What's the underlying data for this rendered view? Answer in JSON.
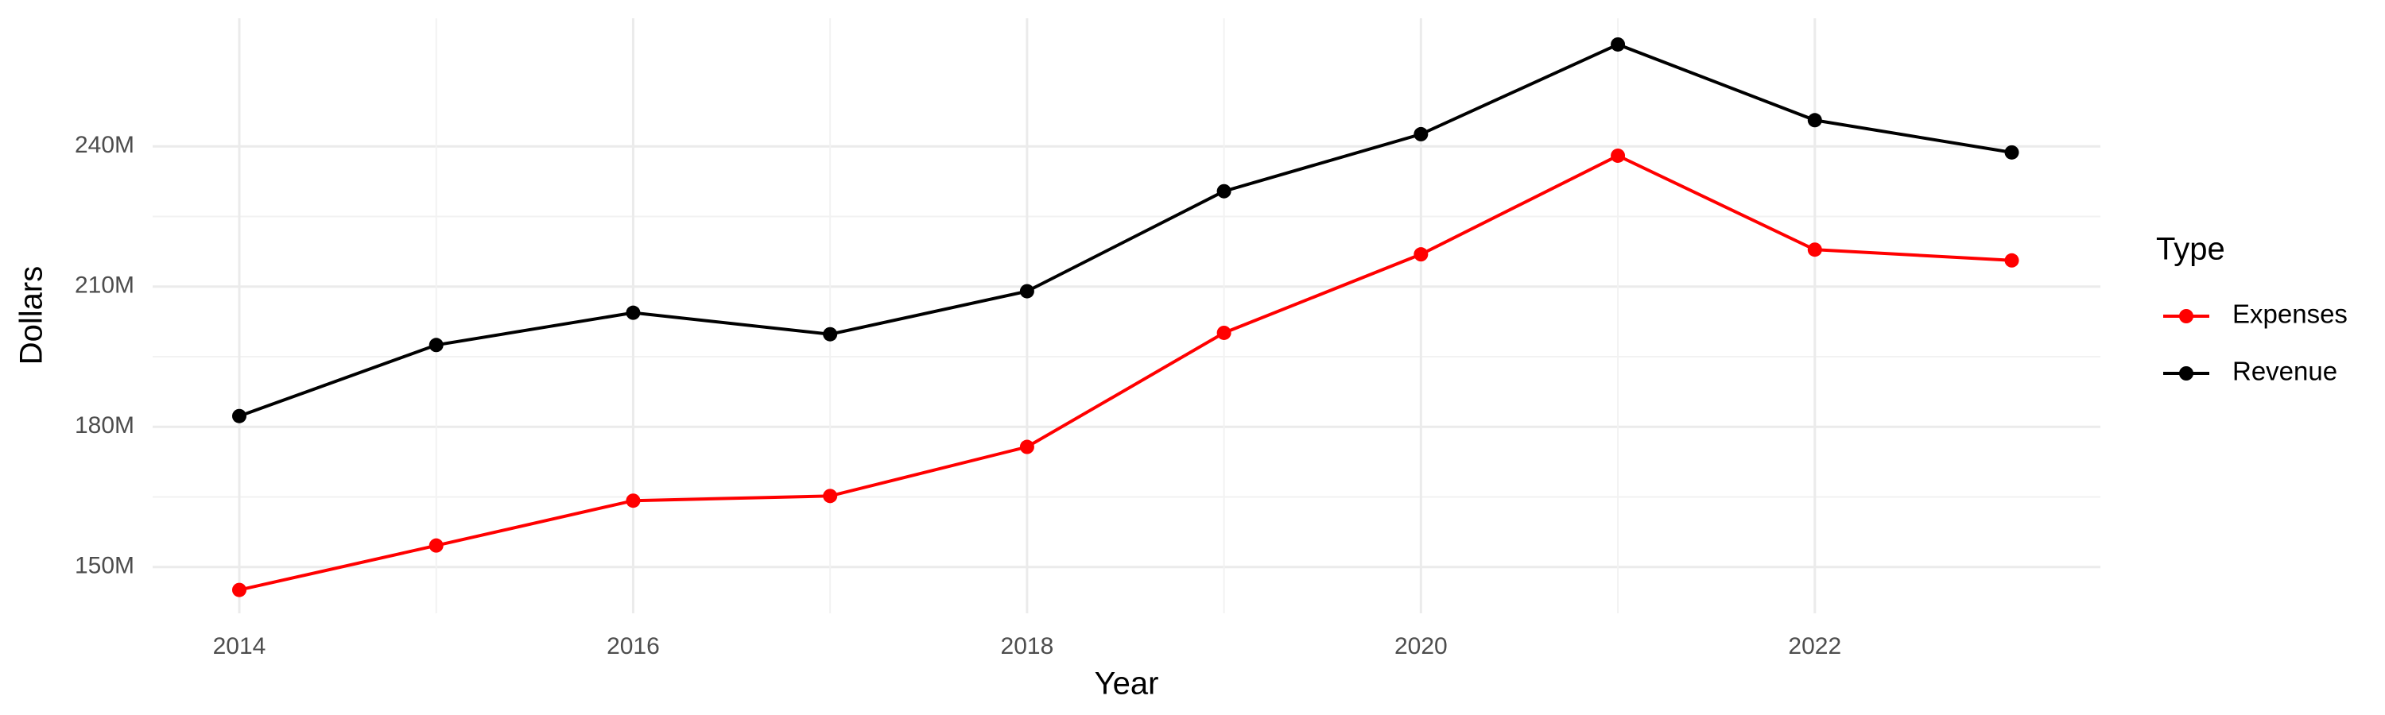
{
  "chart_data": {
    "type": "line",
    "x_label": "Year",
    "y_label": "Dollars",
    "legend_title": "Type",
    "legend": "right",
    "grid": true,
    "x": [
      2014,
      2015,
      2016,
      2017,
      2018,
      2019,
      2020,
      2021,
      2022,
      2023
    ],
    "series": [
      {
        "name": "Expenses",
        "color": "#ff0000",
        "values": [
          145100000,
          154600000,
          164200000,
          165200000,
          175700000,
          200100000,
          216900000,
          238000000,
          217900000,
          215600000
        ]
      },
      {
        "name": "Revenue",
        "color": "#000000",
        "values": [
          182300000,
          197500000,
          204400000,
          199800000,
          209000000,
          230400000,
          242600000,
          261800000,
          245600000,
          238700000
        ]
      }
    ],
    "xlim": [
      2013.56,
      2023.45
    ],
    "xticks": [
      2014,
      2016,
      2018,
      2020,
      2022
    ],
    "ylim": [
      140100000,
      267400000
    ],
    "yticks": [
      {
        "value": 150000000,
        "label": "150M"
      },
      {
        "value": 180000000,
        "label": "180M"
      },
      {
        "value": 210000000,
        "label": "210M"
      },
      {
        "value": 240000000,
        "label": "240M"
      }
    ]
  }
}
